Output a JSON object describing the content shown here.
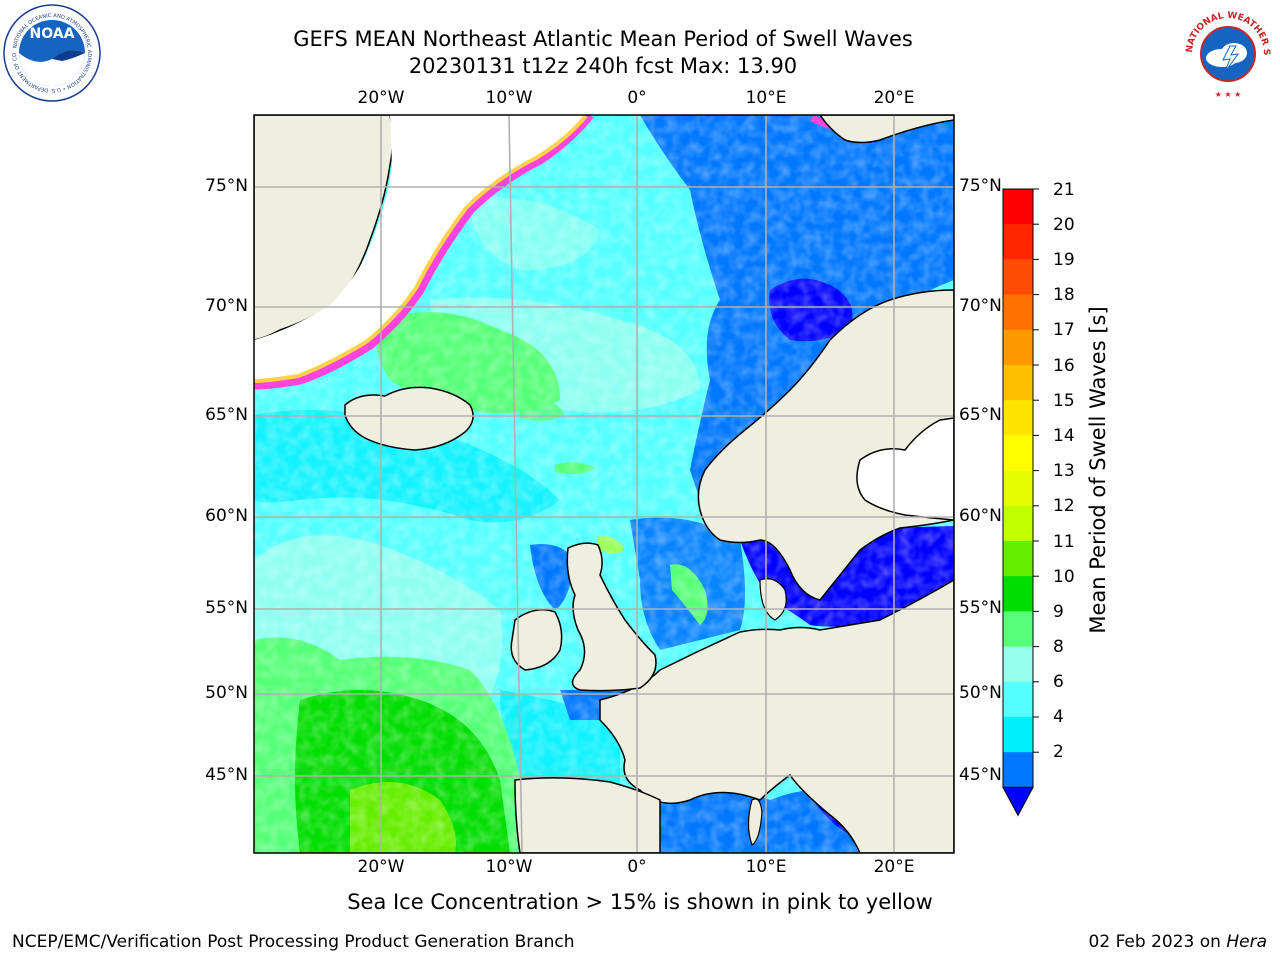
{
  "title_line1": "GEFS MEAN Northeast Atlantic Mean Period of Swell Waves",
  "title_line2": "20230131 t12z 240h fcst   Max: 13.90",
  "lon_labels": [
    "20°W",
    "10°W",
    "0°",
    "10°E",
    "20°E"
  ],
  "lat_labels_left": [
    "75°N",
    "70°N",
    "65°N",
    "60°N",
    "55°N",
    "50°N",
    "45°N"
  ],
  "lat_labels_right": [
    "75°N",
    "70°N",
    "65°N",
    "60°N",
    "55°N",
    "50°N",
    "45°N"
  ],
  "colorbar": {
    "label": "Mean Period of Swell Waves [s]",
    "ticks": [
      "21",
      "20",
      "19",
      "18",
      "17",
      "16",
      "15",
      "14",
      "13",
      "12",
      "11",
      "10",
      "9",
      "8",
      "6",
      "4",
      "2"
    ],
    "colors": [
      "#ff0000",
      "#ff2600",
      "#ff4c00",
      "#ff7200",
      "#ff9900",
      "#ffbf00",
      "#ffe500",
      "#ffff00",
      "#e5ff00",
      "#bfff00",
      "#66ee00",
      "#00dd00",
      "#55ff77",
      "#99ffee",
      "#55ffff",
      "#00eeff",
      "#0077ff",
      "#0000ff"
    ]
  },
  "colors": {
    "land": "#efefe0",
    "ice_pink": "#ff44dd",
    "ice_yellow": "#ffd24a"
  },
  "ice_note": "Sea Ice Concentration > 15% is shown in pink to yellow",
  "footer_left": "NCEP/EMC/Verification Post Processing Product Generation Branch",
  "footer_date": "02 Feb 2023 on",
  "footer_host": "Hera",
  "logos": {
    "noaa": "NOAA",
    "nws": "NATIONAL WEATHER SERVICE"
  }
}
